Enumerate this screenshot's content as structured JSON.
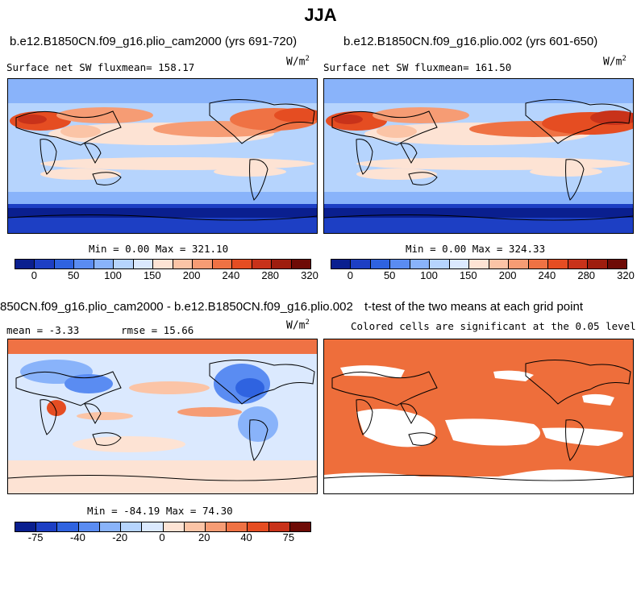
{
  "title": "JJA",
  "panels": {
    "top_left": {
      "case": "b.e12.B1850CN.f09_g16.plio_cam2000 (yrs 691-720)",
      "variable": "Surface net SW flux",
      "mean_label": "mean= 158.17",
      "units": "W/m",
      "units_sup": "2",
      "minmax": "Min =   0.00 Max = 321.10",
      "ticks": [
        "0",
        "50",
        "100",
        "150",
        "200",
        "240",
        "280",
        "320"
      ]
    },
    "top_right": {
      "case": "b.e12.B1850CN.f09_g16.plio.002 (yrs 601-650)",
      "variable": "Surface net SW flux",
      "mean_label": "mean= 161.50",
      "units": "W/m",
      "units_sup": "2",
      "minmax": "Min =   0.00 Max = 324.33",
      "ticks": [
        "0",
        "50",
        "100",
        "150",
        "200",
        "240",
        "280",
        "320"
      ]
    },
    "bottom_left": {
      "case": "850CN.f09_g16.plio_cam2000 - b.e12.B1850CN.f09_g16.plio.002",
      "mean": "mean =  -3.33",
      "rmse": "rmse =  15.66",
      "units": "W/m",
      "units_sup": "2",
      "minmax": "Min = -84.19 Max =  74.30",
      "ticks": [
        "-75",
        "-40",
        "-20",
        "0",
        "20",
        "40",
        "75"
      ]
    },
    "bottom_right": {
      "title": "t-test of the two means at each grid point",
      "subtitle": "Colored cells are significant at the 0.05 level"
    }
  },
  "colors": {
    "abs_scale": [
      "#0a1f8f",
      "#1d3fc4",
      "#2f63e0",
      "#5a8cf2",
      "#89b3fa",
      "#b6d4fd",
      "#dbe9fe",
      "#fde3d4",
      "#fbc4a6",
      "#f69c74",
      "#ef7244",
      "#e54d22",
      "#c8321a",
      "#9e1d0e",
      "#6e0b06"
    ],
    "diff_scale": [
      "#0a1f8f",
      "#1d3fc4",
      "#2f63e0",
      "#5a8cf2",
      "#89b3fa",
      "#b6d4fd",
      "#dbe9fe",
      "#fde3d4",
      "#fbc4a6",
      "#f69c74",
      "#ef7244",
      "#e54d22",
      "#c8321a",
      "#6e0b06"
    ],
    "ttest": "#ee6e3b"
  }
}
